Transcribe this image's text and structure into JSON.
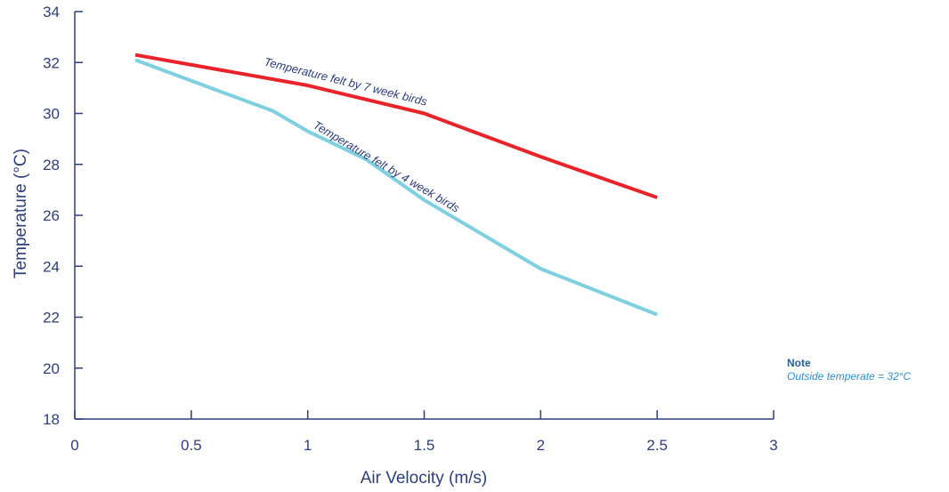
{
  "chart_data": {
    "type": "line",
    "xlabel": "Air Velocity (m/s)",
    "ylabel": "Temperature (°C)",
    "xlim": [
      0,
      3
    ],
    "ylim": [
      18,
      34
    ],
    "x_ticks": [
      "0",
      "0.5",
      "1",
      "1.5",
      "2",
      "2.5",
      "3"
    ],
    "y_ticks": [
      "18",
      "20",
      "22",
      "24",
      "26",
      "28",
      "30",
      "32",
      "34"
    ],
    "grid": false,
    "series": [
      {
        "label": "Temperature felt by 7 week birds",
        "color": "#e8232a",
        "x": [
          0.26,
          1.0,
          1.5,
          2.0,
          2.5
        ],
        "y": [
          32.3,
          31.1,
          30.0,
          28.3,
          26.7
        ]
      },
      {
        "label": "Temperature felt by 4 week birds",
        "color": "#7ecfdf",
        "x": [
          0.26,
          0.85,
          1.0,
          1.25,
          1.5,
          2.0,
          2.5
        ],
        "y": [
          32.1,
          30.1,
          29.3,
          28.2,
          26.6,
          23.9,
          22.1
        ]
      }
    ],
    "note": {
      "title": "Note",
      "text": "Outside temperate = 32°C"
    }
  }
}
